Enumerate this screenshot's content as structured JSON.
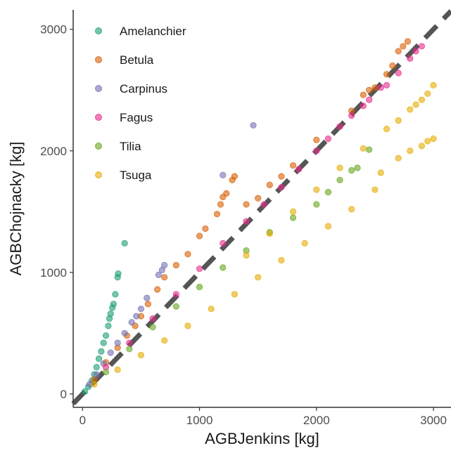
{
  "chart_data": {
    "type": "scatter",
    "xlabel": "AGBJenkins [kg]",
    "ylabel": "AGBChojnacky [kg]",
    "xlim": [
      -80,
      3150
    ],
    "ylim": [
      -110,
      3160
    ],
    "x_ticks": [
      0,
      1000,
      2000,
      3000
    ],
    "y_ticks": [
      0,
      1000,
      2000,
      3000
    ],
    "x_tick_labels": [
      "0",
      "1000",
      "2000",
      "3000"
    ],
    "y_tick_labels": [
      "0",
      "1000",
      "2000",
      "3000"
    ],
    "grid": false,
    "legend_position": "top-left",
    "reference_line": {
      "style": "dashed",
      "color": "#555555",
      "slope": 1,
      "intercept": 0
    },
    "series": [
      {
        "name": "Amelanchier",
        "color": "#1b9e77",
        "points": [
          [
            20,
            20
          ],
          [
            50,
            60
          ],
          [
            80,
            110
          ],
          [
            100,
            160
          ],
          [
            120,
            220
          ],
          [
            140,
            290
          ],
          [
            160,
            350
          ],
          [
            180,
            420
          ],
          [
            200,
            480
          ],
          [
            220,
            560
          ],
          [
            230,
            620
          ],
          [
            240,
            660
          ],
          [
            255,
            710
          ],
          [
            265,
            740
          ],
          [
            280,
            820
          ],
          [
            300,
            960
          ],
          [
            305,
            990
          ],
          [
            360,
            1240
          ]
        ]
      },
      {
        "name": "Betula",
        "color": "#d95f02",
        "points": [
          [
            100,
            120
          ],
          [
            200,
            260
          ],
          [
            300,
            380
          ],
          [
            380,
            480
          ],
          [
            450,
            560
          ],
          [
            500,
            640
          ],
          [
            560,
            740
          ],
          [
            640,
            860
          ],
          [
            700,
            960
          ],
          [
            800,
            1060
          ],
          [
            900,
            1150
          ],
          [
            1000,
            1300
          ],
          [
            1050,
            1360
          ],
          [
            1150,
            1480
          ],
          [
            1180,
            1560
          ],
          [
            1200,
            1620
          ],
          [
            1230,
            1650
          ],
          [
            1280,
            1760
          ],
          [
            1300,
            1790
          ],
          [
            1400,
            1560
          ],
          [
            1500,
            1610
          ],
          [
            1600,
            1720
          ],
          [
            1700,
            1790
          ],
          [
            1800,
            1880
          ],
          [
            2000,
            2090
          ],
          [
            2300,
            2330
          ],
          [
            2400,
            2460
          ],
          [
            2450,
            2500
          ],
          [
            2500,
            2520
          ],
          [
            2600,
            2630
          ],
          [
            2650,
            2700
          ],
          [
            2700,
            2820
          ],
          [
            2740,
            2860
          ],
          [
            2780,
            2900
          ]
        ]
      },
      {
        "name": "Carpinus",
        "color": "#7570b3",
        "points": [
          [
            60,
            80
          ],
          [
            120,
            160
          ],
          [
            180,
            250
          ],
          [
            240,
            340
          ],
          [
            300,
            420
          ],
          [
            360,
            500
          ],
          [
            420,
            590
          ],
          [
            460,
            640
          ],
          [
            500,
            700
          ],
          [
            550,
            790
          ],
          [
            650,
            980
          ],
          [
            680,
            1020
          ],
          [
            700,
            1060
          ],
          [
            1200,
            1800
          ],
          [
            1460,
            2210
          ]
        ]
      },
      {
        "name": "Fagus",
        "color": "#e7298a",
        "points": [
          [
            200,
            220
          ],
          [
            400,
            420
          ],
          [
            600,
            620
          ],
          [
            800,
            820
          ],
          [
            1000,
            1030
          ],
          [
            1200,
            1240
          ],
          [
            1400,
            1420
          ],
          [
            1550,
            1560
          ],
          [
            1700,
            1700
          ],
          [
            1850,
            1850
          ],
          [
            2000,
            2000
          ],
          [
            2100,
            2100
          ],
          [
            2200,
            2200
          ],
          [
            2300,
            2290
          ],
          [
            2400,
            2370
          ],
          [
            2450,
            2420
          ],
          [
            2550,
            2520
          ],
          [
            2600,
            2540
          ],
          [
            2700,
            2640
          ],
          [
            2800,
            2760
          ],
          [
            2850,
            2820
          ],
          [
            2900,
            2860
          ]
        ]
      },
      {
        "name": "Tilia",
        "color": "#66a61e",
        "points": [
          [
            200,
            180
          ],
          [
            400,
            370
          ],
          [
            600,
            550
          ],
          [
            800,
            720
          ],
          [
            1000,
            880
          ],
          [
            1200,
            1040
          ],
          [
            1400,
            1180
          ],
          [
            1600,
            1330
          ],
          [
            1800,
            1450
          ],
          [
            2000,
            1560
          ],
          [
            2100,
            1660
          ],
          [
            2200,
            1760
          ],
          [
            2300,
            1840
          ],
          [
            2350,
            1860
          ],
          [
            2450,
            2010
          ]
        ]
      },
      {
        "name": "Tsuga",
        "color": "#e6ab02",
        "points": [
          [
            100,
            80
          ],
          [
            300,
            200
          ],
          [
            500,
            320
          ],
          [
            700,
            440
          ],
          [
            900,
            560
          ],
          [
            1100,
            700
          ],
          [
            1300,
            820
          ],
          [
            1500,
            960
          ],
          [
            1700,
            1100
          ],
          [
            1900,
            1240
          ],
          [
            2100,
            1380
          ],
          [
            2300,
            1520
          ],
          [
            2500,
            1680
          ],
          [
            2550,
            1820
          ],
          [
            2700,
            1940
          ],
          [
            2800,
            2000
          ],
          [
            2900,
            2040
          ],
          [
            2950,
            2080
          ],
          [
            3000,
            2100
          ],
          [
            1400,
            1140
          ],
          [
            1600,
            1320
          ],
          [
            1800,
            1500
          ],
          [
            2000,
            1680
          ],
          [
            2200,
            1860
          ],
          [
            2400,
            2020
          ],
          [
            2600,
            2180
          ],
          [
            2700,
            2250
          ],
          [
            2800,
            2340
          ],
          [
            2850,
            2380
          ],
          [
            2900,
            2420
          ],
          [
            2950,
            2470
          ],
          [
            3000,
            2540
          ]
        ]
      }
    ]
  }
}
